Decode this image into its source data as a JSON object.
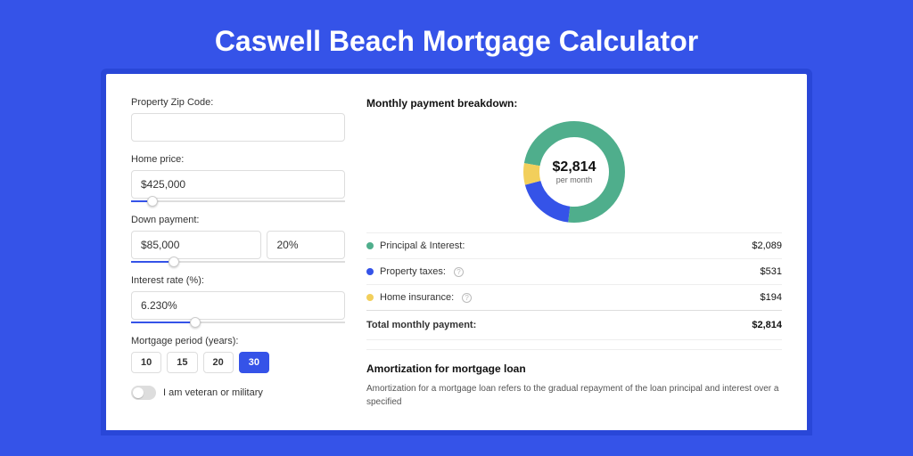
{
  "colors": {
    "page_bg": "#3553e8",
    "card_bg": "#ffffff",
    "text_primary": "#111111",
    "text_body": "#333333",
    "text_muted": "#666666",
    "border": "#dddddd",
    "accent": "#3553e8"
  },
  "header": {
    "title": "Caswell Beach Mortgage Calculator"
  },
  "form": {
    "zip": {
      "label": "Property Zip Code:",
      "value": ""
    },
    "home_price": {
      "label": "Home price:",
      "value": "$425,000",
      "slider_pct": 10
    },
    "down_payment": {
      "label": "Down payment:",
      "amount": "$85,000",
      "pct": "20%",
      "slider_pct": 20
    },
    "interest_rate": {
      "label": "Interest rate (%):",
      "value": "6.230%",
      "slider_pct": 30
    },
    "period": {
      "label": "Mortgage period (years):",
      "options": [
        "10",
        "15",
        "20",
        "30"
      ],
      "selected": "30"
    },
    "veteran": {
      "label": "I am veteran or military",
      "checked": false
    }
  },
  "breakdown": {
    "title": "Monthly payment breakdown:",
    "donut": {
      "amount": "$2,814",
      "sub": "per month",
      "slices": [
        {
          "label": "Principal & Interest:",
          "value": "$2,089",
          "color": "#4fae8c",
          "pct": 74.2,
          "info": false
        },
        {
          "label": "Property taxes:",
          "value": "$531",
          "color": "#3553e8",
          "pct": 18.9,
          "info": true
        },
        {
          "label": "Home insurance:",
          "value": "$194",
          "color": "#f2cf5b",
          "pct": 6.9,
          "info": true
        }
      ]
    },
    "total": {
      "label": "Total monthly payment:",
      "value": "$2,814"
    }
  },
  "amortization": {
    "title": "Amortization for mortgage loan",
    "text": "Amortization for a mortgage loan refers to the gradual repayment of the loan principal and interest over a specified"
  }
}
